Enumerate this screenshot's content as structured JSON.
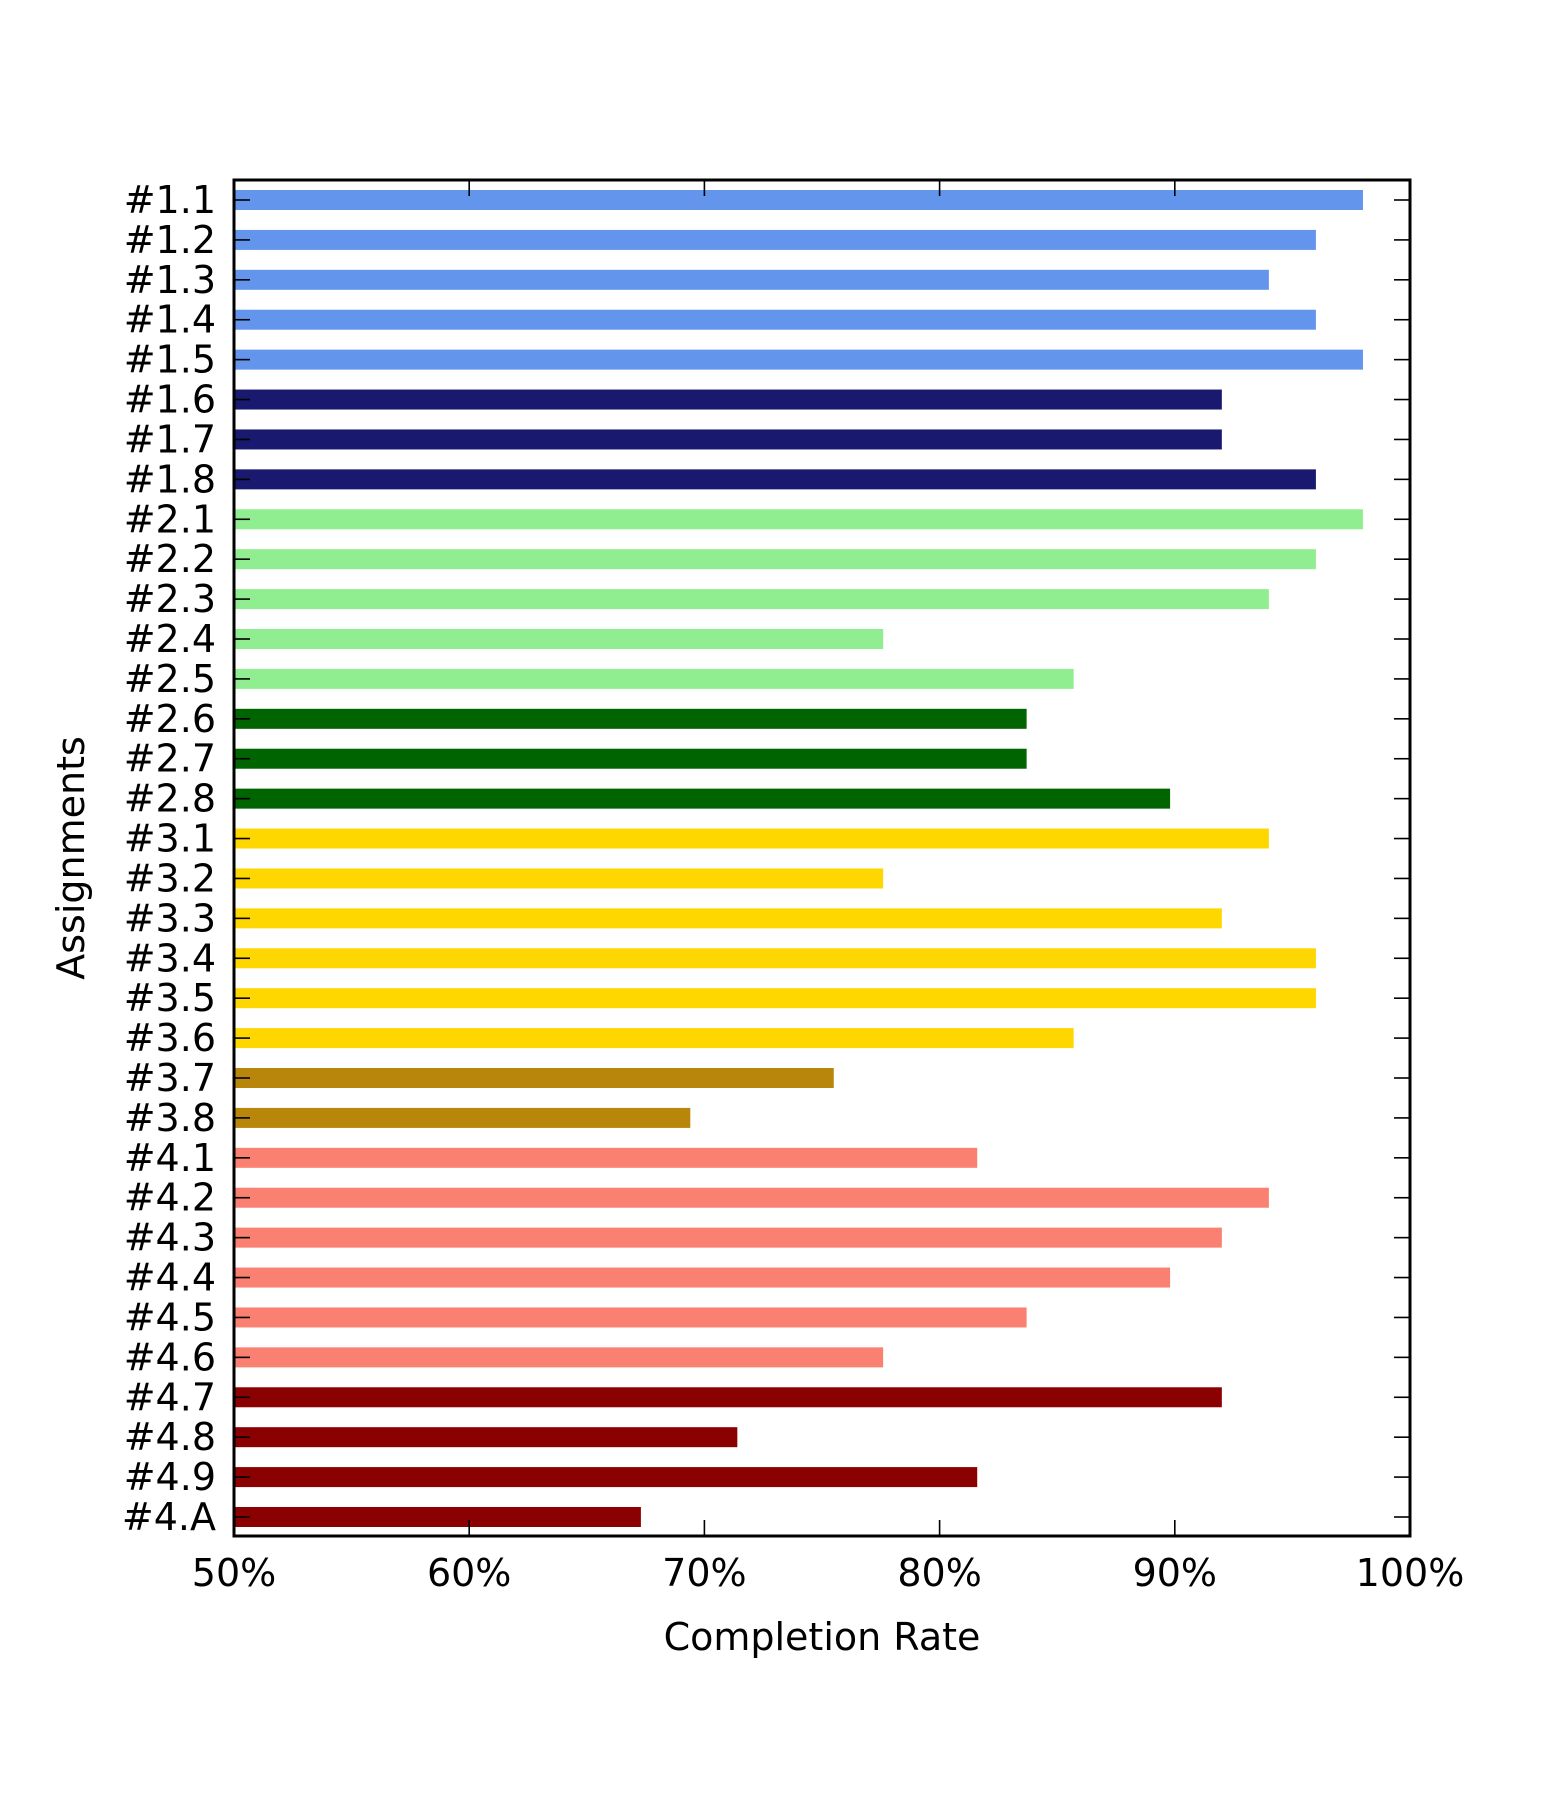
{
  "chart_data": {
    "type": "bar",
    "orientation": "horizontal",
    "xlabel": "Completion Rate",
    "ylabel": "Assignments",
    "xlim": [
      50,
      100
    ],
    "x_ticks": [
      "50%",
      "60%",
      "70%",
      "80%",
      "90%",
      "100%"
    ],
    "x_tick_values": [
      50,
      60,
      70,
      80,
      90,
      100
    ],
    "grid": false,
    "legend": "none",
    "categories": [
      "#1.1",
      "#1.2",
      "#1.3",
      "#1.4",
      "#1.5",
      "#1.6",
      "#1.7",
      "#1.8",
      "#2.1",
      "#2.2",
      "#2.3",
      "#2.4",
      "#2.5",
      "#2.6",
      "#2.7",
      "#2.8",
      "#3.1",
      "#3.2",
      "#3.3",
      "#3.4",
      "#3.5",
      "#3.6",
      "#3.7",
      "#3.8",
      "#4.1",
      "#4.2",
      "#4.3",
      "#4.4",
      "#4.5",
      "#4.6",
      "#4.7",
      "#4.8",
      "#4.9",
      "#4.A"
    ],
    "values": [
      98,
      96,
      94,
      96,
      98,
      92,
      92,
      96,
      98,
      96,
      94,
      77.6,
      85.7,
      83.7,
      83.7,
      89.8,
      94,
      77.6,
      92,
      96,
      96,
      85.7,
      75.5,
      69.4,
      81.6,
      94,
      92,
      89.8,
      83.7,
      77.6,
      92,
      71.4,
      81.6,
      67.3
    ],
    "colors": [
      "#6495ed",
      "#6495ed",
      "#6495ed",
      "#6495ed",
      "#6495ed",
      "#191970",
      "#191970",
      "#191970",
      "#90ee90",
      "#90ee90",
      "#90ee90",
      "#90ee90",
      "#90ee90",
      "#006400",
      "#006400",
      "#006400",
      "#ffd700",
      "#ffd700",
      "#ffd700",
      "#ffd700",
      "#ffd700",
      "#ffd700",
      "#b8860b",
      "#b8860b",
      "#fa8072",
      "#fa8072",
      "#fa8072",
      "#fa8072",
      "#fa8072",
      "#fa8072",
      "#8b0000",
      "#8b0000",
      "#8b0000",
      "#8b0000"
    ]
  }
}
